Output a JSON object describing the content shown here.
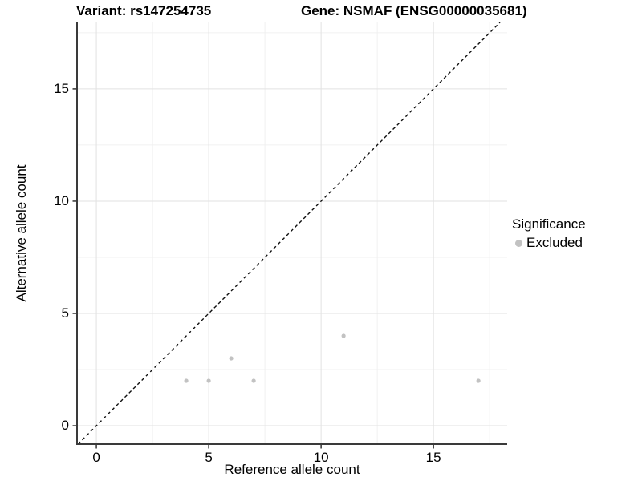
{
  "chart_data": {
    "type": "scatter",
    "titles": [
      "Variant: rs147254735",
      "Gene: NSMAF (ENSG00000035681)"
    ],
    "xlabel": "Reference allele count",
    "ylabel": "Alternative allele count",
    "xlim": [
      -0.86,
      18.28
    ],
    "ylim": [
      -0.82,
      17.96
    ],
    "x_major_ticks": [
      0,
      5,
      10,
      15
    ],
    "y_major_ticks": [
      0,
      5,
      10,
      15
    ],
    "x_minor_gridlines": [
      2.5,
      7.5,
      12.5,
      17.5
    ],
    "y_minor_gridlines": [
      2.5,
      7.5,
      12.5,
      17.5
    ],
    "grid": "major and minor, light gray on white",
    "reference_line": {
      "type": "identity y=x",
      "style": "dashed",
      "color": "#111111"
    },
    "series": [
      {
        "name": "Excluded",
        "color": "#c2c2c2",
        "points": [
          [
            4,
            2
          ],
          [
            5,
            2
          ],
          [
            6,
            3
          ],
          [
            7,
            2
          ],
          [
            11,
            4
          ],
          [
            17,
            2
          ]
        ]
      }
    ],
    "legend": {
      "title": "Significance",
      "position": "right",
      "entries": [
        {
          "label": "Excluded",
          "color": "#c2c2c2"
        }
      ]
    }
  },
  "colors": {
    "grid_major": "#e2e2e2",
    "grid_minor": "#f0f0f0",
    "axis_line": "#3a3a3a",
    "tick_mark": "#333333",
    "point_fill": "#c2c2c2",
    "text": "#000000",
    "background": "#ffffff"
  }
}
